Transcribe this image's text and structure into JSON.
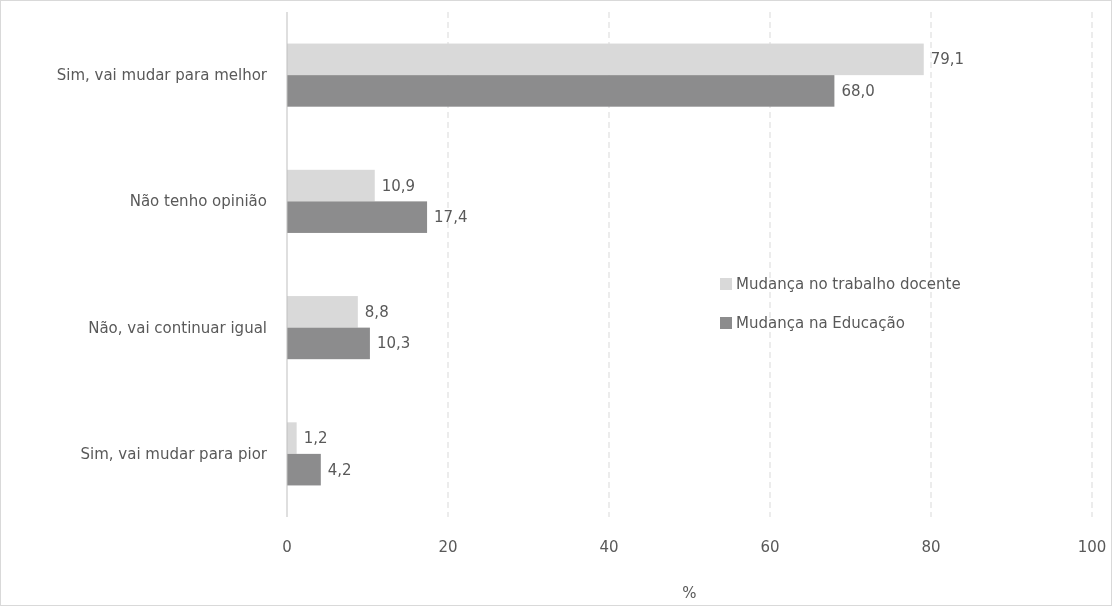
{
  "chart_data": {
    "type": "bar",
    "orientation": "horizontal",
    "xlabel": "%",
    "categories": [
      "Sim, vai mudar para melhor",
      "Não tenho opinião",
      "Não, vai continuar igual",
      "Sim, vai mudar para pior"
    ],
    "series": [
      {
        "name": "Mudança no trabalho docente",
        "color": "#d9d9d9",
        "values": [
          79.1,
          10.9,
          8.8,
          1.2
        ],
        "value_labels": [
          "79,1",
          "10,9",
          "8,8",
          "1,2"
        ]
      },
      {
        "name": "Mudança na Educação",
        "color": "#8c8c8d",
        "values": [
          68.0,
          17.4,
          10.3,
          4.2
        ],
        "value_labels": [
          "68,0",
          "17,4",
          "10,3",
          "4,2"
        ]
      }
    ],
    "xlim": [
      0,
      100
    ],
    "xticks": [
      0,
      20,
      40,
      60,
      80,
      100
    ],
    "grid": "x",
    "legend": "right"
  }
}
